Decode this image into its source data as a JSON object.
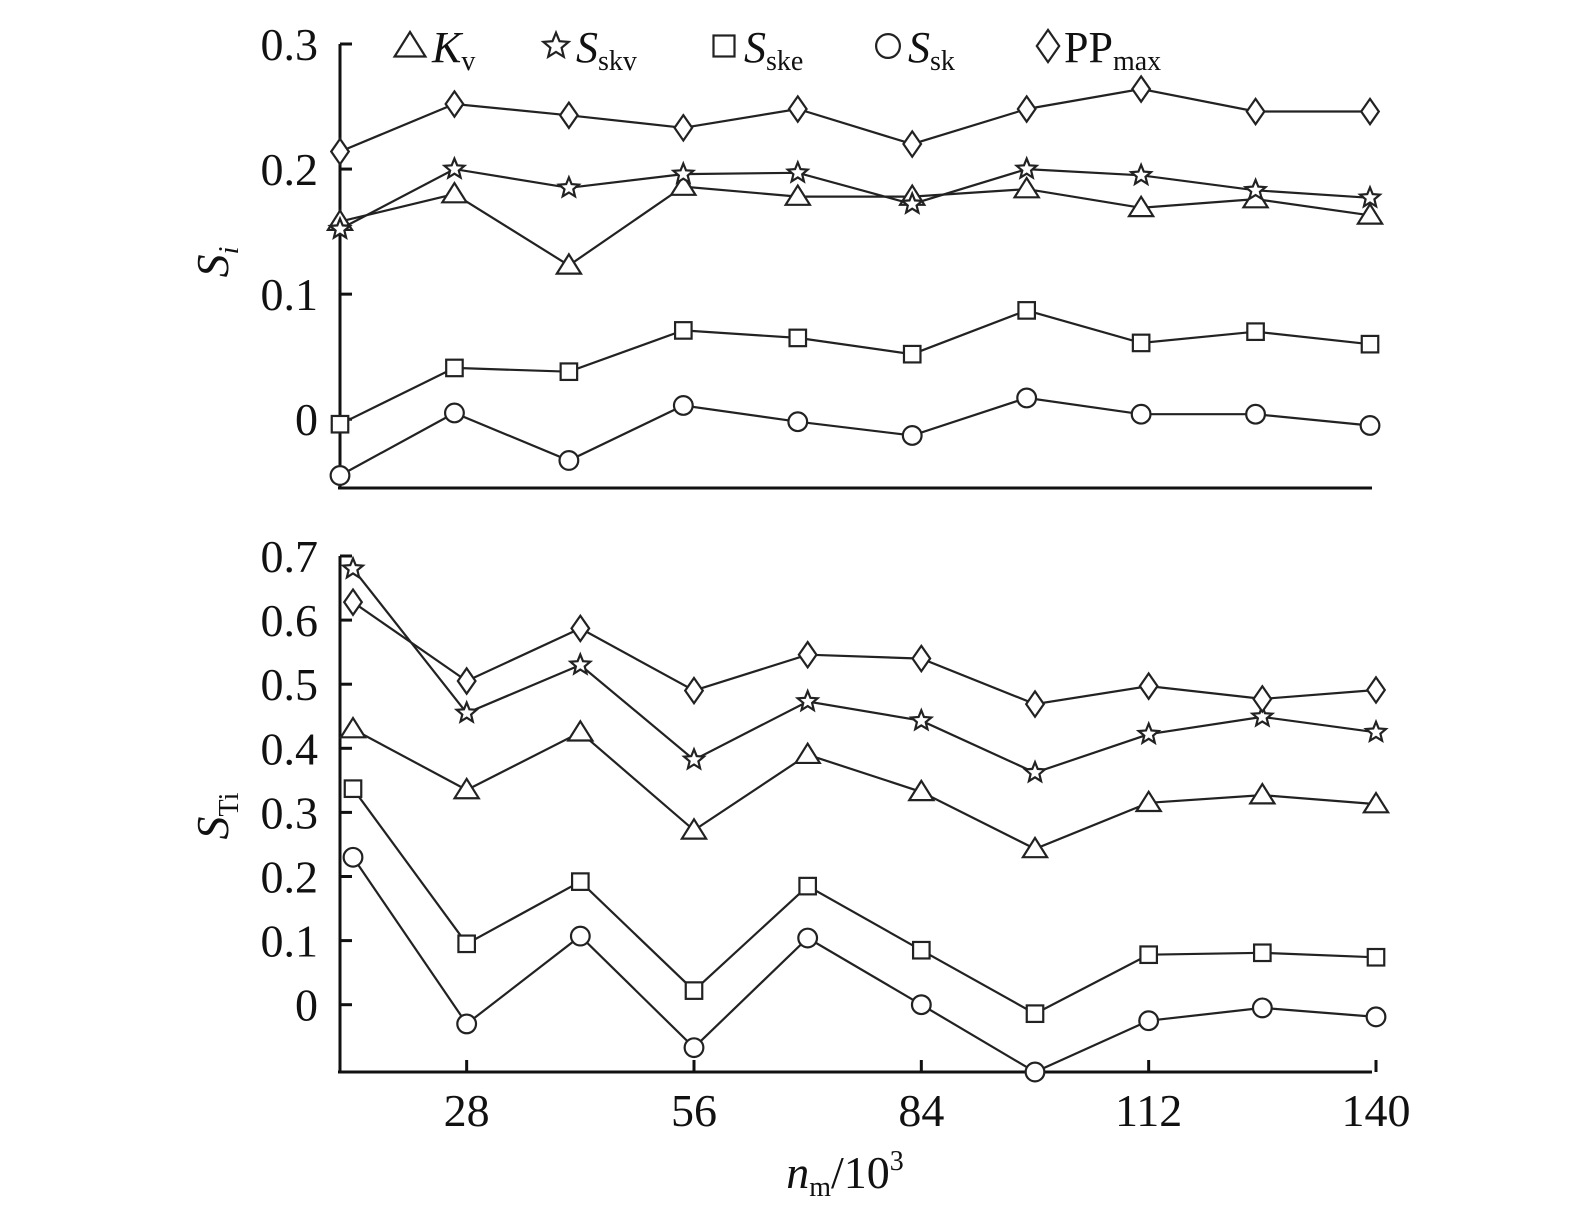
{
  "chart_data": [
    {
      "type": "line",
      "panel": "top",
      "ylabel": {
        "main": "S",
        "sub": "i"
      },
      "ylim": [
        -0.055,
        0.3
      ],
      "yticks": [
        "0.3",
        "0.2",
        "0.1",
        "0"
      ],
      "ytick_values": [
        0.3,
        0.2,
        0.1,
        0
      ],
      "x": [
        14,
        28,
        42,
        56,
        70,
        84,
        98,
        112,
        126,
        140
      ],
      "legend": [
        {
          "main": "K",
          "sub": "v",
          "marker": "triangle"
        },
        {
          "main": "S",
          "sub": "skv",
          "marker": "star"
        },
        {
          "main": "S",
          "sub": "ske",
          "marker": "square"
        },
        {
          "main": "S",
          "sub": "sk",
          "marker": "circle"
        },
        {
          "main": "PP",
          "sub": "max",
          "marker": "diamond"
        }
      ],
      "series": [
        {
          "id": "Kv",
          "marker": "triangle",
          "values": [
            0.158,
            0.18,
            0.123,
            0.186,
            0.178,
            0.178,
            0.184,
            0.169,
            0.176,
            0.163
          ]
        },
        {
          "id": "Sskv",
          "marker": "star",
          "values": [
            0.152,
            0.2,
            0.185,
            0.196,
            0.197,
            0.172,
            0.2,
            0.195,
            0.183,
            0.177
          ]
        },
        {
          "id": "Sske",
          "marker": "square",
          "values": [
            -0.004,
            0.041,
            0.038,
            0.071,
            0.065,
            0.052,
            0.087,
            0.061,
            0.07,
            0.06
          ]
        },
        {
          "id": "Ssk",
          "marker": "circle",
          "values": [
            -0.045,
            0.005,
            -0.033,
            0.011,
            -0.002,
            -0.013,
            0.017,
            0.004,
            0.004,
            -0.005
          ]
        },
        {
          "id": "PPmax",
          "marker": "diamond",
          "values": [
            0.214,
            0.252,
            0.243,
            0.233,
            0.248,
            0.22,
            0.248,
            0.264,
            0.246,
            0.246
          ]
        }
      ]
    },
    {
      "type": "line",
      "panel": "bottom",
      "ylabel": {
        "main": "S",
        "sub": "Ti"
      },
      "xlabel": {
        "main": "n",
        "sub": "m",
        "rest": "/10",
        "sup": "3"
      },
      "ylim": [
        -0.105,
        0.7
      ],
      "yticks": [
        "0.7",
        "0.6",
        "0.5",
        "0.4",
        "0.3",
        "0.2",
        "0.1",
        "0"
      ],
      "ytick_values": [
        0.7,
        0.6,
        0.5,
        0.4,
        0.3,
        0.2,
        0.1,
        0
      ],
      "xticks": [
        "28",
        "56",
        "84",
        "112",
        "140"
      ],
      "xtick_values": [
        28,
        56,
        84,
        112,
        140
      ],
      "x": [
        14,
        28,
        42,
        56,
        70,
        84,
        98,
        112,
        126,
        140
      ],
      "series": [
        {
          "id": "Kv",
          "marker": "triangle",
          "values": [
            0.43,
            0.335,
            0.425,
            0.272,
            0.39,
            0.332,
            0.243,
            0.315,
            0.327,
            0.313
          ]
        },
        {
          "id": "Sskv",
          "marker": "star",
          "values": [
            0.68,
            0.455,
            0.53,
            0.382,
            0.473,
            0.443,
            0.362,
            0.422,
            0.449,
            0.425
          ]
        },
        {
          "id": "Sske",
          "marker": "square",
          "values": [
            0.337,
            0.095,
            0.192,
            0.022,
            0.185,
            0.085,
            -0.014,
            0.078,
            0.081,
            0.074
          ]
        },
        {
          "id": "Ssk",
          "marker": "circle",
          "values": [
            0.23,
            -0.03,
            0.107,
            -0.067,
            0.104,
            0.0,
            -0.105,
            -0.025,
            -0.005,
            -0.019
          ]
        },
        {
          "id": "PPmax",
          "marker": "diamond",
          "values": [
            0.628,
            0.505,
            0.587,
            0.49,
            0.546,
            0.54,
            0.469,
            0.497,
            0.477,
            0.491
          ]
        }
      ]
    }
  ]
}
